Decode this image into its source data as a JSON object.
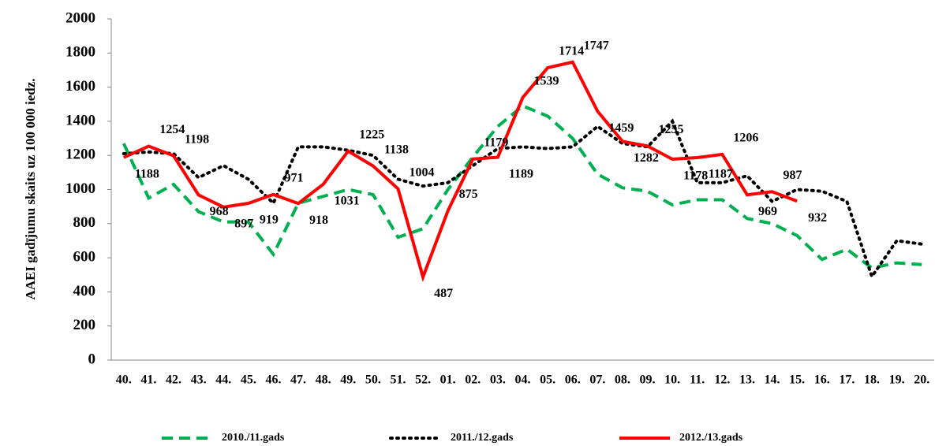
{
  "chart_data": {
    "type": "line",
    "y_label": "AAEI gadījumu skaits uz 100 000 iedz.",
    "categories": [
      "40.",
      "41.",
      "42.",
      "43.",
      "44.",
      "45.",
      "46.",
      "47.",
      "48.",
      "49.",
      "50.",
      "51.",
      "52.",
      "01.",
      "02.",
      "03.",
      "04.",
      "05.",
      "06.",
      "07.",
      "08.",
      "09.",
      "10.",
      "11.",
      "12.",
      "13.",
      "14.",
      "15.",
      "16.",
      "17.",
      "18.",
      "19.",
      "20."
    ],
    "series": [
      {
        "name": "2010./11.gads",
        "color": "#00b050",
        "dash": "dashed",
        "values": [
          1270,
          950,
          1030,
          870,
          810,
          810,
          620,
          920,
          960,
          1000,
          970,
          720,
          770,
          1000,
          1190,
          1370,
          1490,
          1430,
          1300,
          1090,
          1010,
          990,
          910,
          940,
          940,
          830,
          800,
          730,
          590,
          650,
          540,
          570,
          560
        ]
      },
      {
        "name": "2011./12.gads",
        "color": "#000000",
        "dash": "dotted",
        "values": [
          1210,
          1220,
          1210,
          1070,
          1140,
          1060,
          920,
          1250,
          1250,
          1230,
          1200,
          1060,
          1020,
          1040,
          1140,
          1240,
          1250,
          1240,
          1250,
          1370,
          1270,
          1250,
          1400,
          1040,
          1040,
          1080,
          930,
          1000,
          990,
          930,
          490,
          700,
          680
        ]
      },
      {
        "name": "2012./13.gads",
        "color": "#ff0000",
        "dash": "solid",
        "labels": true,
        "values": [
          1188,
          1254,
          1198,
          968,
          897,
          919,
          971,
          918,
          1031,
          1225,
          1138,
          1004,
          487,
          875,
          1179,
          1189,
          1539,
          1714,
          1747,
          1459,
          1282,
          1255,
          1178,
          1187,
          1206,
          969,
          987,
          932,
          null,
          null,
          null,
          null,
          null
        ]
      }
    ],
    "ylim": [
      0,
      2000
    ],
    "yticks": [
      0,
      200,
      400,
      600,
      800,
      1000,
      1200,
      1400,
      1600,
      1800,
      2000
    ],
    "legend": "bottom"
  }
}
